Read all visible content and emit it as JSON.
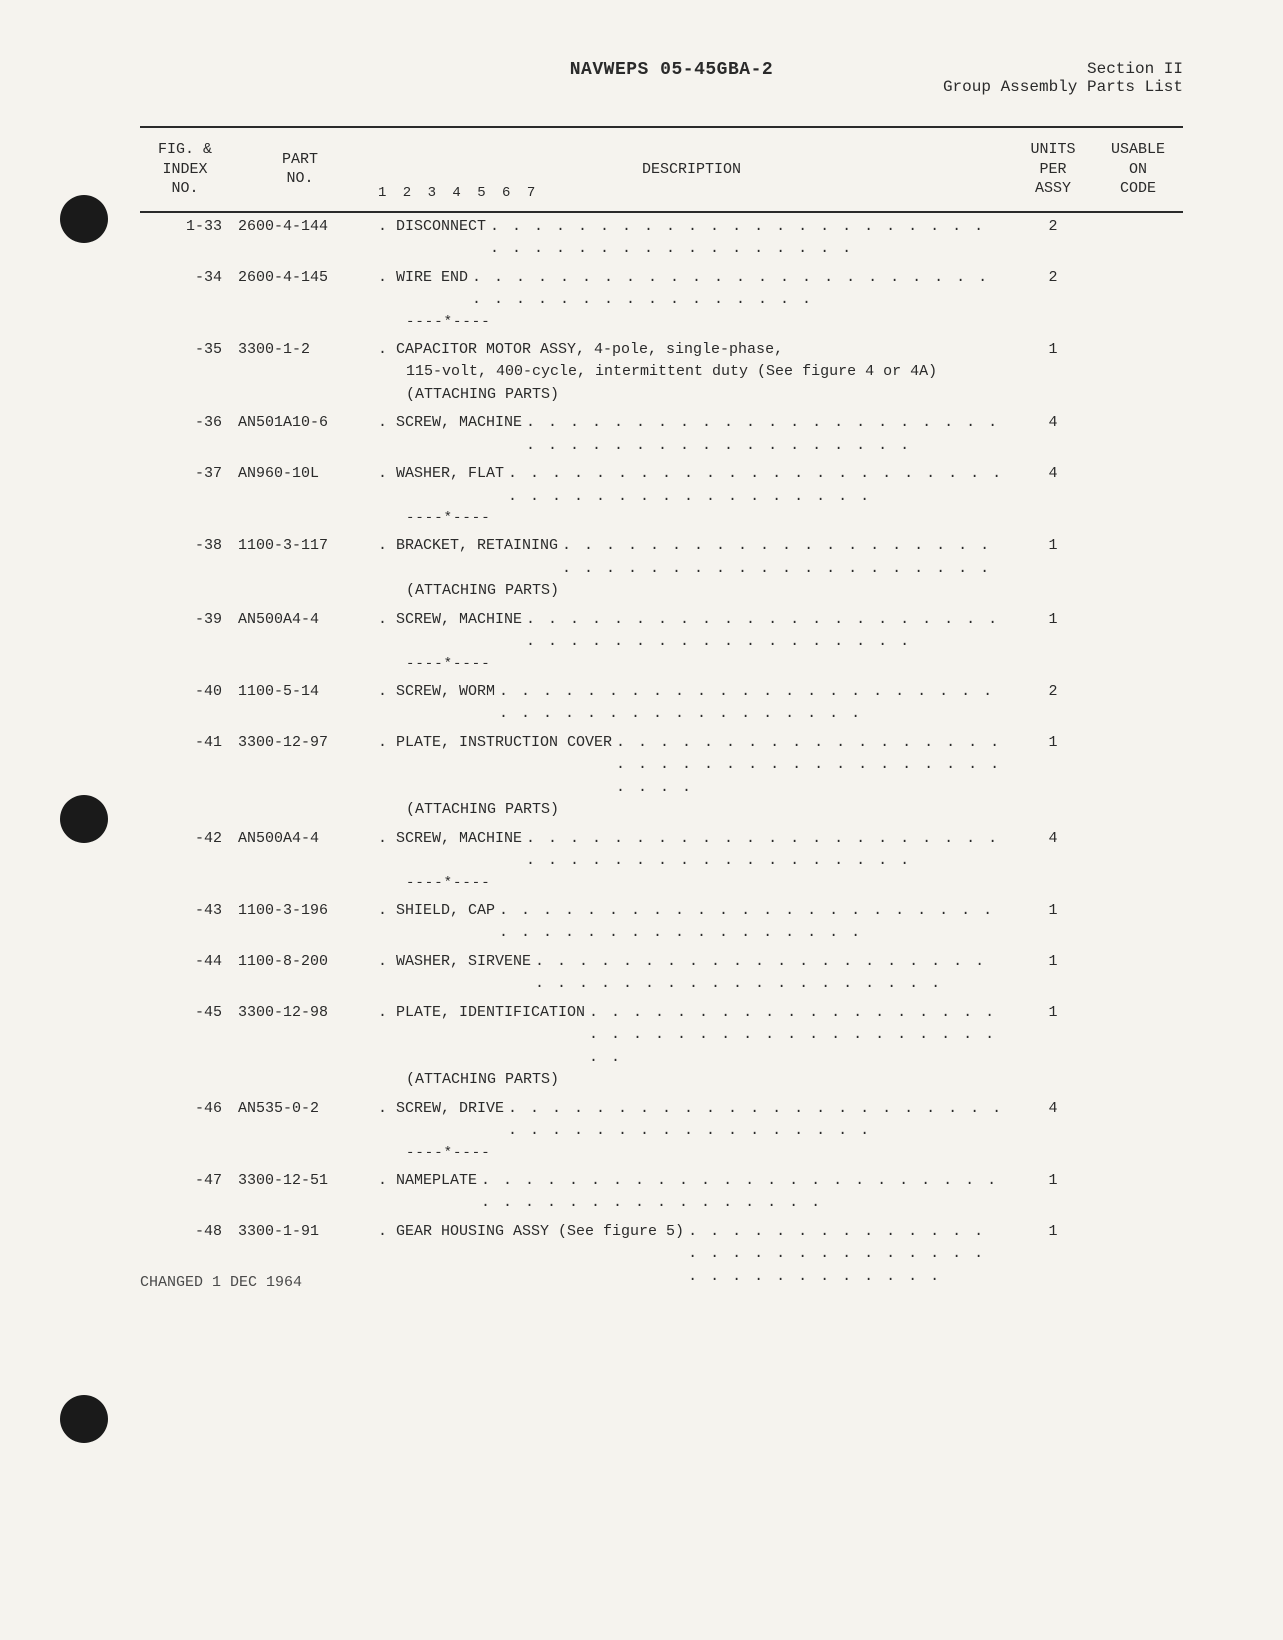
{
  "header": {
    "doc_id": "NAVWEPS 05-45GBA-2",
    "section": "Section II",
    "section_title": "Group Assembly Parts List"
  },
  "table": {
    "columns": {
      "index": "FIG. &\nINDEX\nNO.",
      "part": "PART\nNO.",
      "description": "DESCRIPTION",
      "indent_nums": "1 2 3 4 5 6 7",
      "units": "UNITS\nPER\nASSY",
      "code": "USABLE\nON\nCODE"
    },
    "rows": [
      {
        "index": "1-33",
        "part": "2600-4-144",
        "desc": ". DISCONNECT",
        "dots": true,
        "units": "2",
        "code": ""
      },
      {
        "index": "-34",
        "part": "2600-4-145",
        "desc": ". WIRE END",
        "dots": true,
        "units": "2",
        "code": "",
        "sep_after": true
      },
      {
        "index": "-35",
        "part": "3300-1-2",
        "desc": ". CAPACITOR MOTOR ASSY, 4-pole, single-phase,",
        "dots": false,
        "units": "1",
        "code": "",
        "sub": [
          "115-volt, 400-cycle, intermittent duty (See figure 4 or 4A)",
          "(ATTACHING PARTS)"
        ]
      },
      {
        "index": "-36",
        "part": "AN501A10-6",
        "desc": ". SCREW, MACHINE",
        "dots": true,
        "units": "4",
        "code": ""
      },
      {
        "index": "-37",
        "part": "AN960-10L",
        "desc": ". WASHER, FLAT",
        "dots": true,
        "units": "4",
        "code": "",
        "sep_after": true
      },
      {
        "index": "-38",
        "part": "1100-3-117",
        "desc": ". BRACKET, RETAINING",
        "dots": true,
        "units": "1",
        "code": "",
        "sub": [
          "(ATTACHING PARTS)"
        ]
      },
      {
        "index": "-39",
        "part": "AN500A4-4",
        "desc": ". SCREW, MACHINE",
        "dots": true,
        "units": "1",
        "code": "",
        "sep_after": true
      },
      {
        "index": "-40",
        "part": "1100-5-14",
        "desc": ". SCREW, WORM",
        "dots": true,
        "units": "2",
        "code": ""
      },
      {
        "index": "-41",
        "part": "3300-12-97",
        "desc": ". PLATE, INSTRUCTION COVER",
        "dots": true,
        "units": "1",
        "code": "",
        "sub": [
          "(ATTACHING PARTS)"
        ]
      },
      {
        "index": "-42",
        "part": "AN500A4-4",
        "desc": ". SCREW, MACHINE",
        "dots": true,
        "units": "4",
        "code": "",
        "sep_after": true
      },
      {
        "index": "-43",
        "part": "1100-3-196",
        "desc": ". SHIELD, CAP",
        "dots": true,
        "units": "1",
        "code": ""
      },
      {
        "index": "-44",
        "part": "1100-8-200",
        "desc": ". WASHER, SIRVENE",
        "dots": true,
        "units": "1",
        "code": ""
      },
      {
        "index": "-45",
        "part": "3300-12-98",
        "desc": ". PLATE, IDENTIFICATION",
        "dots": true,
        "units": "1",
        "code": "",
        "sub": [
          "(ATTACHING PARTS)"
        ]
      },
      {
        "index": "-46",
        "part": "AN535-0-2",
        "desc": ". SCREW, DRIVE",
        "dots": true,
        "units": "4",
        "code": "",
        "sep_after": true
      },
      {
        "index": "-47",
        "part": "3300-12-51",
        "desc": ". NAMEPLATE",
        "dots": true,
        "units": "1",
        "code": ""
      },
      {
        "index": "-48",
        "part": "3300-1-91",
        "desc": ". GEAR HOUSING ASSY (See figure 5)",
        "dots": true,
        "units": "1",
        "code": ""
      }
    ],
    "separator_text": "----*----"
  },
  "footer": "CHANGED 1 DEC 1964",
  "style": {
    "background_color": "#f5f3ee",
    "text_color": "#2a2a2a",
    "font_family": "Courier New",
    "border_color": "#2a2a2a",
    "punch_hole_color": "#1a1a1a"
  }
}
